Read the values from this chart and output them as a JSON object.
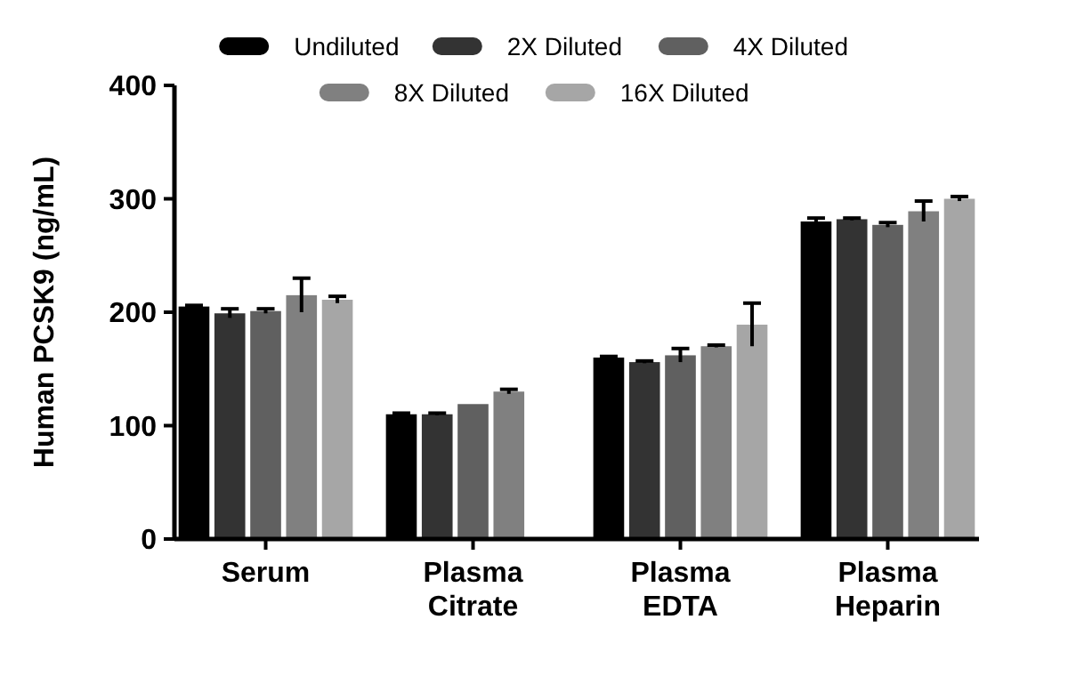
{
  "chart_data": {
    "type": "bar",
    "ylabel": "Human PCSK9 (ng/mL)",
    "categories": [
      "Serum",
      "Plasma\nCitrate",
      "Plasma\nEDTA",
      "Plasma\nHeparin"
    ],
    "series": [
      {
        "name": "Undiluted",
        "color": "#000000",
        "values": [
          205,
          110,
          160,
          280
        ],
        "errors": [
          1,
          1,
          1,
          3
        ]
      },
      {
        "name": "2X Diluted",
        "color": "#333333",
        "values": [
          199,
          110,
          156,
          282
        ],
        "errors": [
          4,
          1,
          1,
          1
        ]
      },
      {
        "name": "4X Diluted",
        "color": "#606060",
        "values": [
          201,
          119,
          162,
          277
        ],
        "errors": [
          2,
          null,
          6,
          2
        ]
      },
      {
        "name": "8X Diluted",
        "color": "#808080",
        "values": [
          215,
          130,
          170,
          289
        ],
        "errors": [
          15,
          2,
          1,
          9
        ]
      },
      {
        "name": "16X Diluted",
        "color": "#a6a6a6",
        "values": [
          211,
          null,
          189,
          300
        ],
        "errors": [
          3,
          null,
          19,
          2
        ]
      }
    ],
    "ylim": [
      0,
      400
    ],
    "yticks": [
      0,
      100,
      200,
      300,
      400
    ],
    "grid": false,
    "legend": "top"
  }
}
